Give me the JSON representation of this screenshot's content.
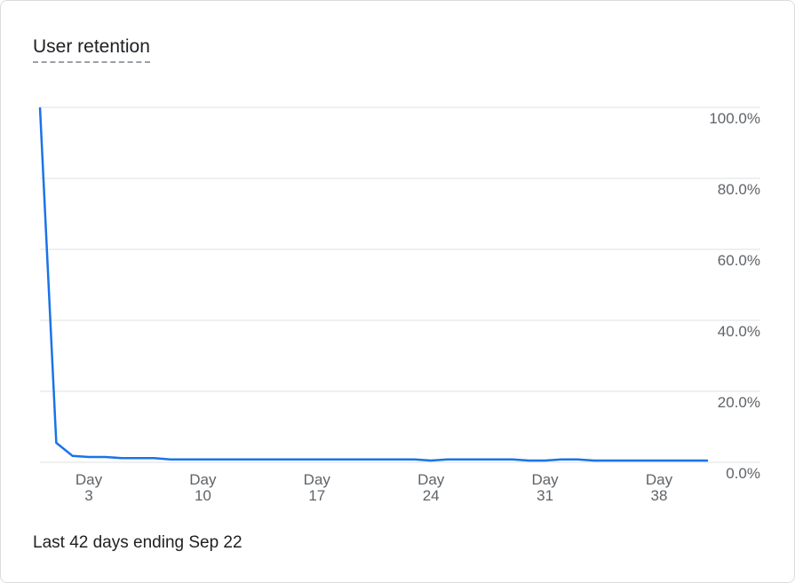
{
  "chart_data": {
    "type": "line",
    "title": "User retention",
    "footnote": "Last 42 days ending Sep 22",
    "x": [
      0,
      1,
      2,
      3,
      4,
      5,
      6,
      7,
      8,
      9,
      10,
      11,
      12,
      13,
      14,
      15,
      16,
      17,
      18,
      19,
      20,
      21,
      22,
      23,
      24,
      25,
      26,
      27,
      28,
      29,
      30,
      31,
      32,
      33,
      34,
      35,
      36,
      37,
      38,
      39,
      40,
      41
    ],
    "series": [
      {
        "color": "#1a73e8",
        "values": [
          100,
          5.5,
          1.8,
          1.5,
          1.5,
          1.2,
          1.2,
          1.2,
          0.8,
          0.8,
          0.8,
          0.8,
          0.8,
          0.8,
          0.8,
          0.8,
          0.8,
          0.8,
          0.8,
          0.8,
          0.8,
          0.8,
          0.8,
          0.8,
          0.5,
          0.8,
          0.8,
          0.8,
          0.8,
          0.8,
          0.5,
          0.5,
          0.8,
          0.8,
          0.5,
          0.5,
          0.5,
          0.5,
          0.5,
          0.5,
          0.5,
          0.5
        ]
      }
    ],
    "xlim": [
      0,
      41
    ],
    "xticks": [
      {
        "value": 3,
        "label": "Day 3"
      },
      {
        "value": 10,
        "label": "Day 10"
      },
      {
        "value": 17,
        "label": "Day 17"
      },
      {
        "value": 24,
        "label": "Day 24"
      },
      {
        "value": 31,
        "label": "Day 31"
      },
      {
        "value": 38,
        "label": "Day 38"
      }
    ],
    "ylim": [
      0,
      100
    ],
    "yticks": [
      {
        "value": 0,
        "label": "0.0%"
      },
      {
        "value": 20,
        "label": "20.0%"
      },
      {
        "value": 40,
        "label": "40.0%"
      },
      {
        "value": 60,
        "label": "60.0%"
      },
      {
        "value": 80,
        "label": "80.0%"
      },
      {
        "value": 100,
        "label": "100.0%"
      }
    ],
    "grid": true
  }
}
